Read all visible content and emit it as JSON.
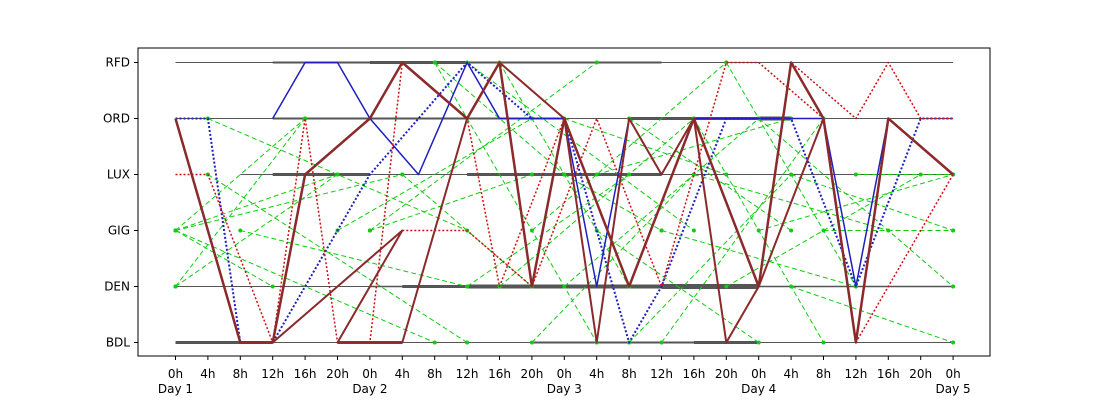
{
  "chart_data": {
    "type": "line",
    "title": "",
    "xlabel": "",
    "ylabel": "",
    "y_categories": [
      "BDL",
      "DEN",
      "GIG",
      "LUX",
      "ORD",
      "RFD"
    ],
    "xlim_hours": [
      -4,
      100
    ],
    "x_tick_labels": [
      "0h",
      "4h",
      "8h",
      "12h",
      "16h",
      "20h",
      "0h",
      "4h",
      "8h",
      "12h",
      "16h",
      "20h",
      "0h",
      "4h",
      "8h",
      "12h",
      "16h",
      "20h",
      "0h",
      "4h",
      "8h",
      "12h",
      "16h",
      "20h",
      "0h"
    ],
    "day_labels": [
      "Day 1",
      "Day 2",
      "Day 3",
      "Day 4",
      "Day 5"
    ],
    "grid": false,
    "legend": "none",
    "colors": {
      "timeline": "#555555",
      "route_blue": "#1f1fbf",
      "route_red": "#cc1111",
      "route_dark_red": "#8b2a2a",
      "candidate_green": "#11cc11"
    },
    "timelines": [
      {
        "airport": "RFD",
        "segments": [
          [
            0,
            96,
            1
          ],
          [
            12,
            48,
            2
          ],
          [
            24,
            36,
            3
          ],
          [
            36,
            60,
            2
          ]
        ]
      },
      {
        "airport": "ORD",
        "segments": [
          [
            0,
            96,
            1
          ],
          [
            12,
            48,
            2
          ],
          [
            56,
            72,
            3
          ],
          [
            72,
            76,
            4
          ]
        ]
      },
      {
        "airport": "LUX",
        "segments": [
          [
            8,
            96,
            1
          ],
          [
            12,
            24,
            3
          ],
          [
            36,
            60,
            3
          ]
        ]
      },
      {
        "airport": "DEN",
        "segments": [
          [
            0,
            96,
            1
          ],
          [
            24,
            96,
            1.5
          ],
          [
            28,
            72,
            3
          ],
          [
            36,
            60,
            4
          ],
          [
            60,
            72,
            5
          ]
        ]
      },
      {
        "airport": "BDL",
        "segments": [
          [
            0,
            96,
            1
          ],
          [
            0,
            12,
            3
          ],
          [
            20,
            28,
            3
          ],
          [
            44,
            64,
            2
          ],
          [
            64,
            72,
            3
          ]
        ]
      }
    ],
    "series": [
      {
        "name": "",
        "color": "#1f1fbf",
        "dash": "dotted",
        "width": 2,
        "points": [
          [
            0,
            "ORD"
          ],
          [
            4,
            "ORD"
          ],
          [
            8,
            "BDL"
          ],
          [
            12,
            "BDL"
          ],
          [
            24,
            "LUX"
          ],
          [
            36,
            "RFD"
          ],
          [
            44,
            "ORD"
          ],
          [
            48,
            "ORD"
          ],
          [
            56,
            "BDL"
          ],
          [
            60,
            "DEN"
          ],
          [
            68,
            "ORD"
          ],
          [
            76,
            "ORD"
          ],
          [
            84,
            "DEN"
          ],
          [
            92,
            "ORD"
          ],
          [
            96,
            "ORD"
          ]
        ]
      },
      {
        "name": "",
        "color": "#1f1fbf",
        "dash": "solid",
        "width": 1.5,
        "points": [
          [
            12,
            "ORD"
          ],
          [
            16,
            "RFD"
          ],
          [
            20,
            "RFD"
          ],
          [
            24,
            "ORD"
          ],
          [
            30,
            "LUX"
          ],
          [
            36,
            "RFD"
          ],
          [
            40,
            "ORD"
          ],
          [
            48,
            "ORD"
          ],
          [
            52,
            "DEN"
          ],
          [
            56,
            "ORD"
          ],
          [
            60,
            "LUX"
          ],
          [
            64,
            "ORD"
          ],
          [
            72,
            "ORD"
          ],
          [
            76,
            "ORD"
          ],
          [
            80,
            "ORD"
          ],
          [
            84,
            "DEN"
          ],
          [
            88,
            "ORD"
          ],
          [
            96,
            "LUX"
          ]
        ]
      },
      {
        "name": "",
        "color": "#cc1111",
        "dash": "dotted",
        "width": 1.5,
        "points": [
          [
            0,
            "LUX"
          ],
          [
            4,
            "LUX"
          ],
          [
            12,
            "BDL"
          ],
          [
            16,
            "ORD"
          ],
          [
            20,
            "BDL"
          ],
          [
            24,
            "BDL"
          ],
          [
            28,
            "RFD"
          ],
          [
            36,
            "ORD"
          ],
          [
            40,
            "DEN"
          ],
          [
            48,
            "ORD"
          ],
          [
            56,
            "DEN"
          ],
          [
            64,
            "ORD"
          ],
          [
            72,
            "DEN"
          ],
          [
            76,
            "RFD"
          ],
          [
            84,
            "ORD"
          ],
          [
            88,
            "RFD"
          ],
          [
            92,
            "ORD"
          ],
          [
            96,
            "ORD"
          ]
        ]
      },
      {
        "name": "",
        "color": "#cc1111",
        "dash": "dotted",
        "width": 1.5,
        "points": [
          [
            28,
            "GIG"
          ],
          [
            36,
            "GIG"
          ],
          [
            44,
            "DEN"
          ],
          [
            52,
            "ORD"
          ],
          [
            60,
            "DEN"
          ],
          [
            68,
            "RFD"
          ],
          [
            72,
            "RFD"
          ],
          [
            80,
            "ORD"
          ],
          [
            84,
            "BDL"
          ],
          [
            88,
            "DEN"
          ],
          [
            96,
            "LUX"
          ]
        ]
      },
      {
        "name": "",
        "color": "#8b2a2a",
        "dash": "solid",
        "width": 2.5,
        "points": [
          [
            0,
            "ORD"
          ],
          [
            8,
            "BDL"
          ],
          [
            12,
            "BDL"
          ],
          [
            16,
            "LUX"
          ],
          [
            24,
            "ORD"
          ],
          [
            28,
            "RFD"
          ],
          [
            36,
            "ORD"
          ],
          [
            40,
            "RFD"
          ],
          [
            44,
            "DEN"
          ],
          [
            48,
            "ORD"
          ],
          [
            56,
            "DEN"
          ],
          [
            64,
            "ORD"
          ],
          [
            72,
            "DEN"
          ],
          [
            76,
            "RFD"
          ],
          [
            80,
            "ORD"
          ],
          [
            84,
            "BDL"
          ],
          [
            88,
            "ORD"
          ],
          [
            96,
            "LUX"
          ]
        ]
      },
      {
        "name": "",
        "color": "#8b2a2a",
        "dash": "solid",
        "width": 2,
        "points": [
          [
            12,
            "BDL"
          ],
          [
            28,
            "GIG"
          ],
          [
            20,
            "BDL"
          ],
          [
            28,
            "BDL"
          ],
          [
            36,
            "ORD"
          ],
          [
            40,
            "RFD"
          ],
          [
            48,
            "ORD"
          ],
          [
            52,
            "BDL"
          ],
          [
            56,
            "ORD"
          ],
          [
            60,
            "LUX"
          ],
          [
            64,
            "ORD"
          ],
          [
            68,
            "BDL"
          ],
          [
            72,
            "DEN"
          ],
          [
            80,
            "ORD"
          ],
          [
            84,
            "BDL"
          ]
        ]
      },
      {
        "name": "",
        "color": "#11cc11",
        "dash": "dashed",
        "width": 1,
        "markers": true,
        "segments": [
          [
            [
              0,
              "GIG"
            ],
            [
              16,
              "ORD"
            ]
          ],
          [
            [
              0,
              "GIG"
            ],
            [
              20,
              "LUX"
            ]
          ],
          [
            [
              0,
              "GIG"
            ],
            [
              12,
              "DEN"
            ]
          ],
          [
            [
              0,
              "GIG"
            ],
            [
              32,
              "BDL"
            ]
          ],
          [
            [
              0,
              "GIG"
            ],
            [
              28,
              "LUX"
            ]
          ],
          [
            [
              0,
              "DEN"
            ],
            [
              16,
              "ORD"
            ]
          ],
          [
            [
              0,
              "DEN"
            ],
            [
              20,
              "LUX"
            ]
          ],
          [
            [
              4,
              "ORD"
            ],
            [
              36,
              "GIG"
            ]
          ],
          [
            [
              4,
              "LUX"
            ],
            [
              36,
              "BDL"
            ]
          ],
          [
            [
              8,
              "GIG"
            ],
            [
              36,
              "DEN"
            ]
          ],
          [
            [
              24,
              "GIG"
            ],
            [
              52,
              "RFD"
            ]
          ],
          [
            [
              24,
              "GIG"
            ],
            [
              44,
              "LUX"
            ]
          ],
          [
            [
              28,
              "LUX"
            ],
            [
              44,
              "DEN"
            ]
          ],
          [
            [
              32,
              "RFD"
            ],
            [
              52,
              "BDL"
            ]
          ],
          [
            [
              32,
              "RFD"
            ],
            [
              48,
              "LUX"
            ]
          ],
          [
            [
              36,
              "RFD"
            ],
            [
              64,
              "GIG"
            ]
          ],
          [
            [
              36,
              "DEN"
            ],
            [
              56,
              "LUX"
            ]
          ],
          [
            [
              40,
              "RFD"
            ],
            [
              56,
              "DEN"
            ]
          ],
          [
            [
              40,
              "DEN"
            ],
            [
              64,
              "ORD"
            ]
          ],
          [
            [
              44,
              "GIG"
            ],
            [
              68,
              "RFD"
            ]
          ],
          [
            [
              48,
              "LUX"
            ],
            [
              60,
              "GIG"
            ]
          ],
          [
            [
              48,
              "DEN"
            ],
            [
              72,
              "ORD"
            ]
          ],
          [
            [
              52,
              "GIG"
            ],
            [
              72,
              "BDL"
            ]
          ],
          [
            [
              52,
              "LUX"
            ],
            [
              76,
              "ORD"
            ]
          ],
          [
            [
              56,
              "ORD"
            ],
            [
              76,
              "GIG"
            ]
          ],
          [
            [
              60,
              "BDL"
            ],
            [
              80,
              "ORD"
            ]
          ],
          [
            [
              60,
              "GIG"
            ],
            [
              84,
              "DEN"
            ]
          ],
          [
            [
              64,
              "LUX"
            ],
            [
              88,
              "GIG"
            ]
          ],
          [
            [
              64,
              "ORD"
            ],
            [
              80,
              "BDL"
            ]
          ],
          [
            [
              68,
              "DEN"
            ],
            [
              92,
              "LUX"
            ]
          ],
          [
            [
              68,
              "RFD"
            ],
            [
              84,
              "DEN"
            ]
          ],
          [
            [
              72,
              "GIG"
            ],
            [
              96,
              "LUX"
            ]
          ],
          [
            [
              72,
              "ORD"
            ],
            [
              96,
              "DEN"
            ]
          ],
          [
            [
              76,
              "LUX"
            ],
            [
              96,
              "GIG"
            ]
          ],
          [
            [
              76,
              "DEN"
            ],
            [
              96,
              "BDL"
            ]
          ],
          [
            [
              80,
              "GIG"
            ],
            [
              96,
              "GIG"
            ]
          ],
          [
            [
              84,
              "LUX"
            ],
            [
              96,
              "LUX"
            ]
          ],
          [
            [
              48,
              "ORD"
            ],
            [
              68,
              "LUX"
            ]
          ],
          [
            [
              44,
              "BDL"
            ],
            [
              64,
              "LUX"
            ]
          ],
          [
            [
              56,
              "BDL"
            ],
            [
              76,
              "LUX"
            ]
          ],
          [
            [
              20,
              "GIG"
            ],
            [
              44,
              "ORD"
            ]
          ]
        ]
      }
    ]
  }
}
